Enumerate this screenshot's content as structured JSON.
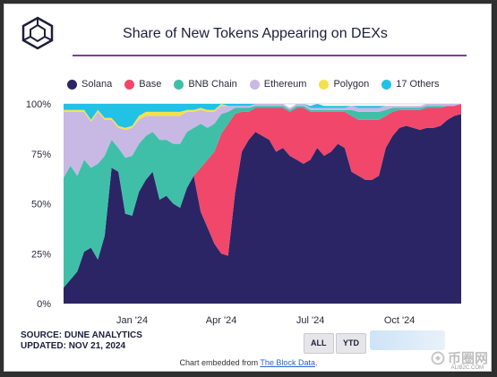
{
  "header": {
    "title": "Share of New Tokens Appearing on DEXs"
  },
  "legend": [
    {
      "name": "Solana",
      "color": "#2b2565"
    },
    {
      "name": "Base",
      "color": "#f0476b"
    },
    {
      "name": "BNB Chain",
      "color": "#3fbfa8"
    },
    {
      "name": "Ethereum",
      "color": "#c7b8e4"
    },
    {
      "name": "Polygon",
      "color": "#f4e04d"
    },
    {
      "name": "17 Others",
      "color": "#22c1e6"
    }
  ],
  "footer": {
    "source": "SOURCE: DUNE ANALYTICS",
    "updated": "UPDATED: NOV 21, 2024",
    "btn_all": "ALL",
    "btn_ytd": "YTD",
    "embed_prefix": "Chart embedded from ",
    "embed_link": "The Block Data",
    "embed_suffix": "."
  },
  "watermark": {
    "text": "币圈网",
    "sub": "ALIB2C.COM"
  },
  "chart_data": {
    "type": "area",
    "stacked": true,
    "y_ticks": [
      "0%",
      "25%",
      "50%",
      "75%",
      "100%"
    ],
    "x_ticks": [
      {
        "label": "Jan '24",
        "x": 10
      },
      {
        "label": "Apr '24",
        "x": 23
      },
      {
        "label": "Jul '24",
        "x": 36
      },
      {
        "label": "Oct '24",
        "x": 49
      }
    ],
    "ylim": [
      0,
      100
    ],
    "x": [
      0,
      1,
      2,
      3,
      4,
      5,
      6,
      7,
      8,
      9,
      10,
      11,
      12,
      13,
      14,
      15,
      16,
      17,
      18,
      19,
      20,
      21,
      22,
      23,
      24,
      25,
      26,
      27,
      28,
      29,
      30,
      31,
      32,
      33,
      34,
      35,
      36,
      37,
      38,
      39,
      40,
      41,
      42,
      43,
      44,
      45,
      46,
      47,
      48,
      49,
      50,
      51,
      52,
      53,
      54,
      55,
      56,
      57,
      58
    ],
    "series": [
      {
        "name": "Solana",
        "values": [
          8,
          12,
          16,
          26,
          28,
          22,
          34,
          68,
          66,
          45,
          44,
          56,
          62,
          66,
          52,
          54,
          50,
          48,
          58,
          64,
          46,
          38,
          30,
          25,
          24,
          55,
          76,
          82,
          86,
          84,
          82,
          76,
          78,
          74,
          72,
          70,
          72,
          78,
          74,
          76,
          80,
          78,
          66,
          64,
          62,
          62,
          64,
          78,
          84,
          88,
          89,
          88,
          87,
          88,
          88,
          89,
          92,
          94,
          95
        ]
      },
      {
        "name": "Base",
        "values": [
          0,
          0,
          0,
          0,
          0,
          0,
          0,
          0,
          0,
          0,
          0,
          0,
          0,
          0,
          0,
          0,
          0,
          0,
          0,
          0,
          22,
          34,
          46,
          60,
          66,
          40,
          20,
          14,
          12,
          14,
          16,
          22,
          20,
          22,
          26,
          28,
          24,
          18,
          22,
          20,
          16,
          18,
          28,
          28,
          30,
          30,
          28,
          16,
          12,
          9,
          8,
          9,
          10,
          10,
          10,
          9,
          7,
          5,
          5
        ]
      },
      {
        "name": "BNB Chain",
        "values": [
          55,
          57,
          48,
          46,
          40,
          48,
          40,
          14,
          12,
          28,
          30,
          24,
          22,
          20,
          30,
          28,
          30,
          32,
          28,
          24,
          22,
          16,
          14,
          10,
          6,
          3,
          2,
          2,
          1,
          1,
          1,
          1,
          1,
          1,
          1,
          1,
          1,
          1,
          1,
          1,
          1,
          1,
          3,
          4,
          4,
          4,
          4,
          3,
          2,
          1,
          1,
          1,
          1,
          1,
          1,
          1,
          0,
          0,
          0
        ]
      },
      {
        "name": "Ethereum",
        "values": [
          33,
          27,
          32,
          24,
          23,
          26,
          18,
          10,
          10,
          14,
          14,
          12,
          10,
          8,
          12,
          12,
          14,
          14,
          10,
          8,
          7,
          8,
          6,
          4,
          3,
          1,
          1,
          1,
          1,
          1,
          1,
          1,
          1,
          1,
          1,
          1,
          1,
          1,
          1,
          1,
          1,
          1,
          2,
          2,
          2,
          2,
          2,
          2,
          1,
          1,
          1,
          1,
          1,
          1,
          1,
          1,
          1,
          1,
          0
        ]
      },
      {
        "name": "Polygon",
        "values": [
          1,
          1,
          1,
          1,
          1,
          1,
          1,
          1,
          1,
          1,
          1,
          2,
          2,
          2,
          2,
          2,
          2,
          2,
          1,
          1,
          1,
          1,
          1,
          1,
          0,
          0,
          0,
          0,
          0,
          0,
          0,
          0,
          0,
          0,
          0,
          0,
          0,
          0,
          0,
          0,
          0,
          0,
          0,
          0,
          0,
          0,
          0,
          0,
          0,
          0,
          0,
          0,
          0,
          0,
          0,
          0,
          0,
          0,
          0
        ]
      },
      {
        "name": "17 Others",
        "values": [
          3,
          3,
          3,
          3,
          8,
          3,
          7,
          7,
          11,
          12,
          11,
          6,
          4,
          4,
          4,
          4,
          4,
          4,
          3,
          3,
          2,
          3,
          3,
          0,
          1,
          1,
          1,
          1,
          0,
          0,
          0,
          0,
          0,
          0,
          0,
          0,
          1,
          2,
          1,
          1,
          1,
          1,
          0,
          1,
          1,
          1,
          1,
          0,
          0,
          0,
          0,
          0,
          0,
          0,
          0,
          0,
          0,
          0,
          0
        ]
      }
    ]
  }
}
